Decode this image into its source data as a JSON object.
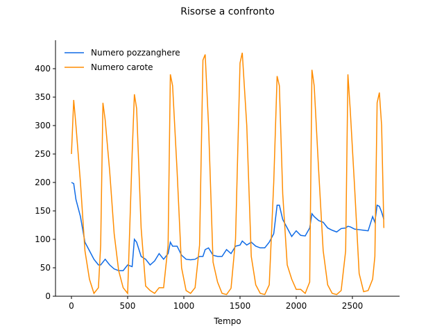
{
  "chart_data": {
    "type": "line",
    "title": "Risorse a confronto",
    "x_label": "Tempo",
    "x": [
      0,
      20,
      40,
      80,
      120,
      160,
      200,
      240,
      260,
      280,
      300,
      340,
      380,
      420,
      460,
      500,
      540,
      560,
      580,
      620,
      660,
      700,
      740,
      780,
      820,
      860,
      880,
      900,
      940,
      980,
      1020,
      1060,
      1100,
      1140,
      1170,
      1190,
      1220,
      1260,
      1300,
      1340,
      1380,
      1420,
      1460,
      1500,
      1520,
      1560,
      1600,
      1640,
      1680,
      1720,
      1760,
      1800,
      1830,
      1850,
      1880,
      1920,
      1960,
      2000,
      2040,
      2080,
      2120,
      2140,
      2160,
      2200,
      2240,
      2280,
      2320,
      2360,
      2400,
      2440,
      2460,
      2480,
      2520,
      2560,
      2600,
      2640,
      2680,
      2700,
      2720,
      2740,
      2760,
      2780
    ],
    "series": [
      {
        "name": "Numero pozzanghere",
        "color": "#0e6ae6",
        "values": [
          200,
          198,
          170,
          140,
          95,
          80,
          65,
          55,
          55,
          60,
          65,
          55,
          48,
          45,
          45,
          55,
          52,
          100,
          95,
          70,
          65,
          55,
          62,
          75,
          65,
          75,
          95,
          88,
          88,
          72,
          65,
          64,
          65,
          70,
          70,
          82,
          85,
          72,
          70,
          70,
          82,
          75,
          88,
          90,
          97,
          90,
          95,
          88,
          85,
          85,
          95,
          110,
          160,
          160,
          135,
          120,
          105,
          115,
          107,
          106,
          120,
          145,
          140,
          133,
          130,
          120,
          116,
          113,
          119,
          120,
          123,
          122,
          118,
          117,
          116,
          115,
          140,
          130,
          160,
          158,
          148,
          135
        ]
      },
      {
        "name": "Numero carote",
        "color": "#ff8c00",
        "values": [
          250,
          345,
          300,
          200,
          80,
          30,
          5,
          15,
          90,
          340,
          310,
          220,
          110,
          45,
          15,
          5,
          250,
          355,
          330,
          120,
          18,
          10,
          5,
          15,
          15,
          90,
          390,
          370,
          220,
          50,
          10,
          5,
          15,
          90,
          415,
          425,
          300,
          60,
          25,
          5,
          3,
          14,
          100,
          410,
          428,
          300,
          70,
          20,
          5,
          3,
          20,
          200,
          387,
          370,
          180,
          55,
          30,
          12,
          12,
          5,
          25,
          398,
          370,
          220,
          80,
          20,
          5,
          3,
          10,
          80,
          390,
          330,
          190,
          40,
          8,
          10,
          30,
          70,
          340,
          358,
          300,
          120
        ]
      }
    ],
    "xlim": [
      -142,
      2920
    ],
    "ylim": [
      0,
      450
    ],
    "xticks": [
      0,
      500,
      1000,
      1500,
      2000,
      2500
    ],
    "yticks": [
      0,
      50,
      100,
      150,
      200,
      250,
      300,
      350,
      400
    ],
    "legend": "upper left"
  }
}
